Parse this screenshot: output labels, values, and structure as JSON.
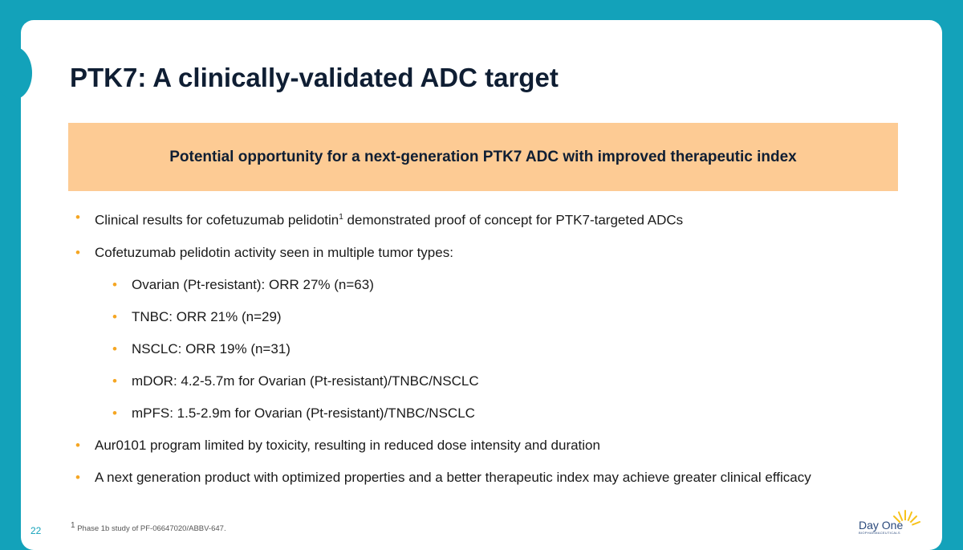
{
  "title": "PTK7: A clinically-validated ADC target",
  "banner": "Potential opportunity for a next-generation PTK7 ADC with improved therapeutic index",
  "bullets": [
    {
      "text_a": "Clinical results for cofetuzumab pelidotin",
      "sup": "1",
      "text_b": " demonstrated proof of concept for PTK7-targeted ADCs"
    },
    {
      "text": "Cofetuzumab pelidotin activity seen in multiple tumor types:"
    },
    {
      "text": "Ovarian (Pt-resistant): ORR 27% (n=63)"
    },
    {
      "text": "TNBC: ORR 21% (n=29)"
    },
    {
      "text": "NSCLC: ORR 19% (n=31)"
    },
    {
      "text": "mDOR: 4.2-5.7m for Ovarian (Pt-resistant)/TNBC/NSCLC"
    },
    {
      "text": "mPFS: 1.5-2.9m for Ovarian (Pt-resistant)/TNBC/NSCLC"
    },
    {
      "text": "Aur0101 program limited by toxicity, resulting in reduced dose intensity and duration"
    },
    {
      "text": "A next generation product with optimized properties and a better therapeutic index may achieve greater clinical efficacy"
    }
  ],
  "footnote": {
    "sup": "1",
    "text": " Phase 1b study of PF-06647020/ABBV-647."
  },
  "page_number": "22",
  "logo": {
    "name": "Day One",
    "subtitle": "BIOPHARMACEUTICALS"
  },
  "colors": {
    "teal": "#13a2ba",
    "banner": "#fdcb94",
    "bullet": "#f5a623"
  }
}
